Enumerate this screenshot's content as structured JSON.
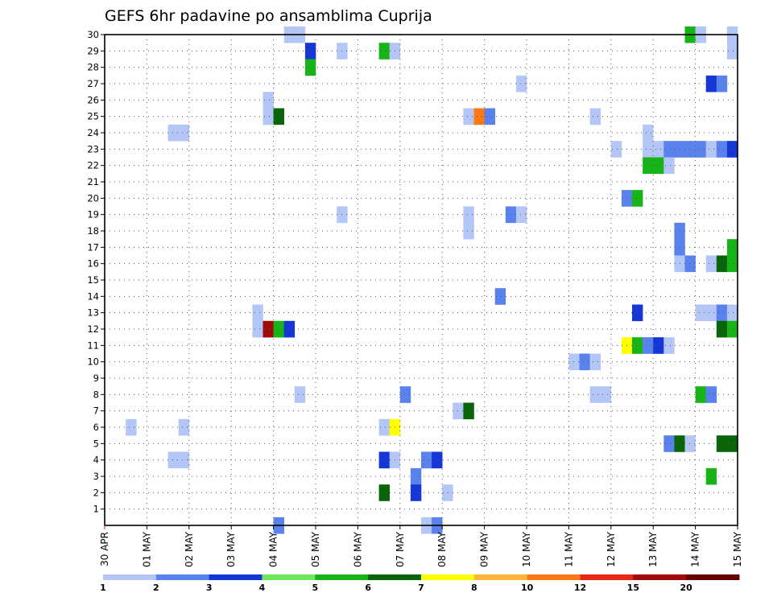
{
  "chart_data": {
    "type": "heatmap",
    "title": "GEFS 6hr padavine po ansamblima Cuprija",
    "xlabel": "",
    "ylabel": "",
    "x_ticks": [
      "30 APR",
      "01 MAY",
      "02 MAY",
      "03 MAY",
      "04 MAY",
      "05 MAY",
      "06 MAY",
      "07 MAY",
      "08 MAY",
      "09 MAY",
      "10 MAY",
      "11 MAY",
      "12 MAY",
      "13 MAY",
      "14 MAY",
      "15 MAY"
    ],
    "x_unit": "6-hour steps (4 per day)",
    "xlim": [
      0,
      60
    ],
    "y_ticks": [
      1,
      2,
      3,
      4,
      5,
      6,
      7,
      8,
      9,
      10,
      11,
      12,
      13,
      14,
      15,
      16,
      17,
      18,
      19,
      20,
      21,
      22,
      23,
      24,
      25,
      26,
      27,
      28,
      29,
      30
    ],
    "ylim": [
      0,
      30
    ],
    "grid": true,
    "colorbar": {
      "labels": [
        "1",
        "2",
        "3",
        "4",
        "5",
        "6",
        "7",
        "8",
        "10",
        "12",
        "15",
        "20"
      ],
      "colors": [
        "#b4c6f5",
        "#5a82ec",
        "#1437d6",
        "#6ee85a",
        "#17b417",
        "#0a640a",
        "#ffff00",
        "#ffb43c",
        "#ff7814",
        "#e62814",
        "#a00a0a",
        "#640000"
      ]
    },
    "cells": [
      [
        17.5,
        30,
        1
      ],
      [
        18.5,
        30,
        1
      ],
      [
        55.5,
        30,
        5
      ],
      [
        56.5,
        30,
        1
      ],
      [
        59.5,
        30,
        1
      ],
      [
        19.5,
        29,
        3
      ],
      [
        22.5,
        29,
        1
      ],
      [
        26.5,
        29,
        5
      ],
      [
        27.5,
        29,
        1
      ],
      [
        59.5,
        29,
        1
      ],
      [
        19.5,
        28,
        5
      ],
      [
        39.5,
        27,
        1
      ],
      [
        57.5,
        27,
        3
      ],
      [
        58.5,
        27,
        2
      ],
      [
        15.5,
        26,
        1
      ],
      [
        15.5,
        25,
        1
      ],
      [
        16.5,
        25,
        6
      ],
      [
        34.5,
        25,
        1
      ],
      [
        35.5,
        25,
        9
      ],
      [
        36.5,
        25,
        2
      ],
      [
        46.5,
        25,
        1
      ],
      [
        6.5,
        24,
        1
      ],
      [
        7.5,
        24,
        1
      ],
      [
        51.5,
        24,
        1
      ],
      [
        48.5,
        23,
        1
      ],
      [
        51.5,
        23,
        1
      ],
      [
        52.5,
        23,
        1
      ],
      [
        53.5,
        23,
        2
      ],
      [
        54.5,
        23,
        2
      ],
      [
        55.5,
        23,
        2
      ],
      [
        56.5,
        23,
        2
      ],
      [
        57.5,
        23,
        1
      ],
      [
        58.5,
        23,
        2
      ],
      [
        59.5,
        23,
        3
      ],
      [
        51.5,
        22,
        5
      ],
      [
        52.5,
        22,
        5
      ],
      [
        53.5,
        22,
        1
      ],
      [
        49.5,
        20,
        2
      ],
      [
        50.5,
        20,
        5
      ],
      [
        22.5,
        19,
        1
      ],
      [
        34.5,
        19,
        1
      ],
      [
        38.5,
        19,
        2
      ],
      [
        39.5,
        19,
        1
      ],
      [
        34.5,
        18,
        1
      ],
      [
        54.5,
        18,
        2
      ],
      [
        54.5,
        17,
        2
      ],
      [
        59.5,
        17,
        5
      ],
      [
        54.5,
        16,
        1
      ],
      [
        55.5,
        16,
        2
      ],
      [
        57.5,
        16,
        1
      ],
      [
        58.5,
        16,
        6
      ],
      [
        59.5,
        16,
        5
      ],
      [
        37.5,
        14,
        2
      ],
      [
        14.5,
        13,
        1
      ],
      [
        50.5,
        13,
        3
      ],
      [
        56.5,
        13,
        1
      ],
      [
        57.5,
        13,
        1
      ],
      [
        58.5,
        13,
        2
      ],
      [
        59.5,
        13,
        1
      ],
      [
        14.5,
        12,
        1
      ],
      [
        15.5,
        12,
        11
      ],
      [
        16.5,
        12,
        5
      ],
      [
        17.5,
        12,
        3
      ],
      [
        58.5,
        12,
        6
      ],
      [
        59.5,
        12,
        5
      ],
      [
        49.5,
        11,
        7
      ],
      [
        50.5,
        11,
        5
      ],
      [
        51.5,
        11,
        2
      ],
      [
        52.5,
        11,
        3
      ],
      [
        53.5,
        11,
        1
      ],
      [
        44.5,
        10,
        1
      ],
      [
        45.5,
        10,
        2
      ],
      [
        46.5,
        10,
        1
      ],
      [
        18.5,
        8,
        1
      ],
      [
        28.5,
        8,
        2
      ],
      [
        46.5,
        8,
        1
      ],
      [
        47.5,
        8,
        1
      ],
      [
        56.5,
        8,
        5
      ],
      [
        57.5,
        8,
        2
      ],
      [
        33.5,
        7,
        1
      ],
      [
        34.5,
        7,
        6
      ],
      [
        2.5,
        6,
        1
      ],
      [
        7.5,
        6,
        1
      ],
      [
        26.5,
        6,
        1
      ],
      [
        27.5,
        6,
        7
      ],
      [
        53.5,
        5,
        2
      ],
      [
        54.5,
        5,
        6
      ],
      [
        55.5,
        5,
        1
      ],
      [
        58.5,
        5,
        6
      ],
      [
        59.5,
        5,
        6
      ],
      [
        6.5,
        4,
        1
      ],
      [
        7.5,
        4,
        1
      ],
      [
        26.5,
        4,
        3
      ],
      [
        27.5,
        4,
        1
      ],
      [
        30.5,
        4,
        2
      ],
      [
        31.5,
        4,
        3
      ],
      [
        29.5,
        3,
        2
      ],
      [
        57.5,
        3,
        5
      ],
      [
        26.5,
        2,
        6
      ],
      [
        29.5,
        2,
        3
      ],
      [
        32.5,
        2,
        1
      ],
      [
        16.5,
        0,
        2
      ],
      [
        30.5,
        0,
        1
      ],
      [
        31.5,
        0,
        2
      ]
    ]
  }
}
